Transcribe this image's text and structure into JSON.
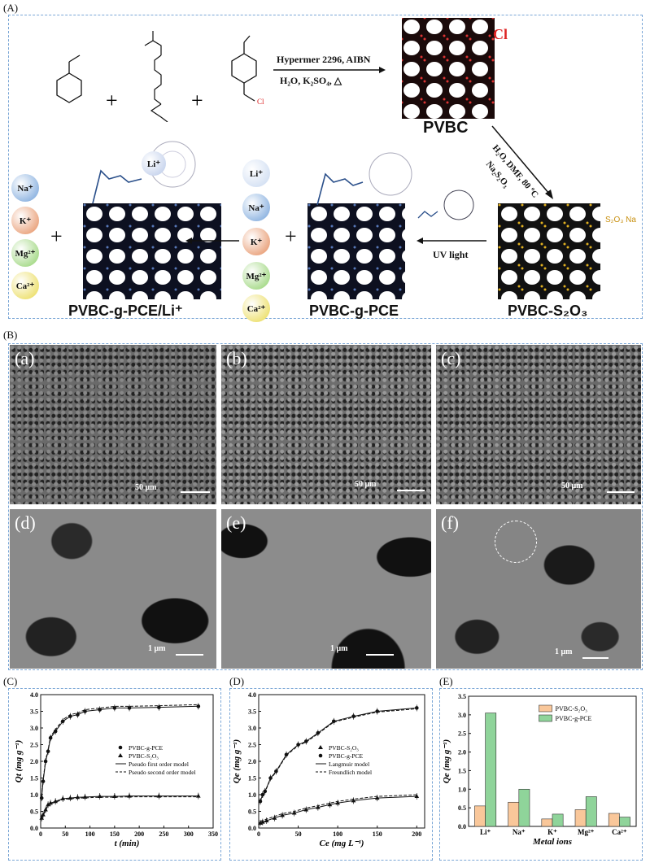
{
  "panels": {
    "A": "(A)",
    "B": "(B)",
    "C": "(C)",
    "D": "(D)",
    "E": "(E)"
  },
  "scheme": {
    "reagents_line1": "Hypermer 2296, AIBN",
    "reagents_line2": "H₂O, K₂SO₄, △",
    "pvbc": "PVBC",
    "cl": "Cl",
    "diag_line1": "H₂O, DMF, 80 ºC",
    "diag_line2": "Na₂S₂O₃",
    "uv": "UV light",
    "s2o3na": "S₂O₃ Na",
    "plus": "+",
    "li": "Li⁺",
    "name_left": "PVBC-g-PCE/Li⁺",
    "name_mid": "PVBC-g-PCE",
    "name_right": "PVBC-S₂O₃",
    "ions_left": [
      "Na⁺",
      "K⁺",
      "Mg²⁺",
      "Ca²⁺"
    ],
    "ions_mid": [
      "Li⁺",
      "Na⁺",
      "K⁺",
      "Mg²⁺",
      "Ca²⁺"
    ],
    "ion_colors": {
      "Li⁺": "#c8d8f0",
      "Na⁺": "#6f9fd8",
      "K⁺": "#e48a5a",
      "Mg²⁺": "#8fd06a",
      "Ca²⁺": "#e8d84a"
    }
  },
  "sem": {
    "labels": [
      "(a)",
      "(b)",
      "(c)",
      "(d)",
      "(e)",
      "(f)"
    ],
    "scale_top": "50 μm",
    "scale_bottom": "1 μm"
  },
  "chart_data": [
    {
      "type": "scatter",
      "panel": "C",
      "xlabel": "t (min)",
      "ylabel": "Qt (mg g⁻¹)",
      "xlim": [
        0,
        350
      ],
      "ylim": [
        0,
        4.0
      ],
      "xticks": [
        0,
        50,
        100,
        150,
        200,
        250,
        300,
        350
      ],
      "yticks": [
        0.0,
        0.5,
        1.0,
        1.5,
        2.0,
        2.5,
        3.0,
        3.5,
        4.0
      ],
      "series": [
        {
          "name": "PVBC-g-PCE",
          "marker": "circle",
          "x": [
            2,
            5,
            10,
            15,
            20,
            30,
            45,
            60,
            75,
            90,
            120,
            150,
            180,
            240,
            320
          ],
          "y": [
            0.9,
            1.4,
            2.0,
            2.3,
            2.7,
            2.9,
            3.2,
            3.35,
            3.4,
            3.5,
            3.55,
            3.6,
            3.6,
            3.62,
            3.65
          ]
        },
        {
          "name": "PVBC-S₂O₃",
          "marker": "triangle",
          "x": [
            2,
            5,
            10,
            15,
            20,
            30,
            45,
            60,
            75,
            90,
            120,
            150,
            180,
            240,
            320
          ],
          "y": [
            0.3,
            0.4,
            0.55,
            0.7,
            0.75,
            0.8,
            0.88,
            0.9,
            0.92,
            0.93,
            0.95,
            0.95,
            0.96,
            0.96,
            0.96
          ]
        }
      ],
      "models": [
        {
          "name": "Pseudo first order model",
          "style": "solid"
        },
        {
          "name": "Pseudo second order model",
          "style": "dashed"
        }
      ]
    },
    {
      "type": "scatter",
      "panel": "D",
      "xlabel": "Ce (mg L⁻¹)",
      "ylabel": "Qe (mg g⁻¹)",
      "xlim": [
        0,
        210
      ],
      "ylim": [
        0,
        4.0
      ],
      "xticks": [
        0,
        50,
        100,
        150,
        200
      ],
      "yticks": [
        0.0,
        0.5,
        1.0,
        1.5,
        2.0,
        2.5,
        3.0,
        3.5,
        4.0
      ],
      "series": [
        {
          "name": "PVBC-S₂O₃",
          "marker": "triangle",
          "x": [
            2,
            5,
            10,
            20,
            30,
            45,
            60,
            75,
            90,
            100,
            120,
            150,
            200
          ],
          "y": [
            0.15,
            0.18,
            0.22,
            0.3,
            0.38,
            0.45,
            0.55,
            0.62,
            0.7,
            0.75,
            0.82,
            0.9,
            0.95
          ]
        },
        {
          "name": "PVBC-g-PCE",
          "marker": "circle",
          "x": [
            2,
            5,
            8,
            15,
            22,
            35,
            50,
            60,
            75,
            95,
            120,
            150,
            200
          ],
          "y": [
            0.8,
            1.0,
            1.1,
            1.5,
            1.7,
            2.2,
            2.5,
            2.6,
            2.85,
            3.2,
            3.35,
            3.5,
            3.6
          ]
        }
      ],
      "models": [
        {
          "name": "Langmuir model",
          "style": "solid"
        },
        {
          "name": "Freundlich model",
          "style": "dashed"
        }
      ]
    },
    {
      "type": "bar",
      "panel": "E",
      "xlabel": "Metal ions",
      "ylabel": "Qe (mg g⁻¹)",
      "ylim": [
        0,
        3.5
      ],
      "yticks": [
        0.0,
        0.5,
        1.0,
        1.5,
        2.0,
        2.5,
        3.0,
        3.5
      ],
      "categories": [
        "Li⁺",
        "Na⁺",
        "K⁺",
        "Mg²⁺",
        "Ca²⁺"
      ],
      "series": [
        {
          "name": "PVBC-S₂O₃",
          "color": "#f9c79a",
          "values": [
            0.55,
            0.65,
            0.2,
            0.45,
            0.35
          ]
        },
        {
          "name": "PVBC-g-PCE",
          "color": "#8fd49a",
          "values": [
            3.05,
            1.0,
            0.33,
            0.8,
            0.25
          ]
        }
      ]
    }
  ]
}
